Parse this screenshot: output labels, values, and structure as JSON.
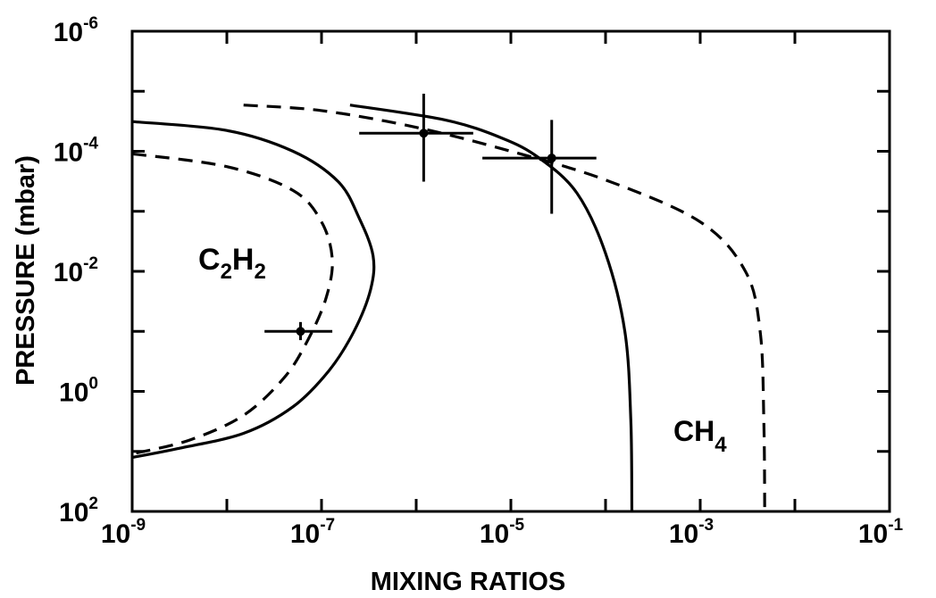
{
  "chart_data": {
    "type": "line",
    "xlabel": "MIXING RATIOS",
    "ylabel": "PRESSURE (mbar)",
    "xscale": "log",
    "yscale": "log",
    "y_inverted": true,
    "xlim": [
      1e-09,
      0.1
    ],
    "ylim": [
      100,
      1e-06
    ],
    "grid": false,
    "legend": "none",
    "x_ticks": [
      {
        "base": "10",
        "exp": "-9"
      },
      {
        "base": "10",
        "exp": "-7"
      },
      {
        "base": "10",
        "exp": "-5"
      },
      {
        "base": "10",
        "exp": "-3"
      },
      {
        "base": "10",
        "exp": "-1"
      }
    ],
    "y_ticks": [
      {
        "base": "10",
        "exp": "-6"
      },
      {
        "base": "10",
        "exp": "-4"
      },
      {
        "base": "10",
        "exp": "-2"
      },
      {
        "base": "10",
        "exp": "0"
      },
      {
        "base": "10",
        "exp": "2"
      }
    ],
    "annotations": {
      "c2h2": {
        "main1": "C",
        "sub1": "2",
        "main2": "H",
        "sub2": "2"
      },
      "ch4": {
        "main": "CH",
        "sub": "4"
      }
    },
    "series": [
      {
        "style": "solid",
        "color": "#000000",
        "points": [
          [
            1e-09,
            3.2e-05
          ],
          [
            1e-08,
            4.5e-05
          ],
          [
            5e-08,
            0.0001
          ],
          [
            1.5e-07,
            0.00032
          ],
          [
            2.5e-07,
            0.0013
          ],
          [
            3.5e-07,
            0.0055
          ],
          [
            3.3e-07,
            0.02
          ],
          [
            2.2e-07,
            0.1
          ],
          [
            1.2e-07,
            0.45
          ],
          [
            5e-08,
            1.8
          ],
          [
            1.5e-08,
            5.0
          ],
          [
            3e-09,
            9.0
          ],
          [
            1e-09,
            12.6
          ]
        ]
      },
      {
        "style": "dashed",
        "color": "#000000",
        "points": [
          [
            1e-09,
            0.00011
          ],
          [
            1e-08,
            0.00018
          ],
          [
            5e-08,
            0.00045
          ],
          [
            1e-07,
            0.0015
          ],
          [
            1.3e-07,
            0.0065
          ],
          [
            1.1e-07,
            0.03
          ],
          [
            7e-08,
            0.15
          ],
          [
            4e-08,
            0.6
          ],
          [
            1.5e-08,
            2.5
          ],
          [
            4e-09,
            6.5
          ],
          [
            1e-09,
            11
          ]
        ]
      },
      {
        "style": "solid",
        "color": "#000000",
        "points": [
          [
            2e-07,
            1.7e-05
          ],
          [
            2e-06,
            3e-05
          ],
          [
            8e-06,
            6e-05
          ],
          [
            2e-05,
            0.00013
          ],
          [
            5e-05,
            0.0005
          ],
          [
            0.0001,
            0.005
          ],
          [
            0.00016,
            0.1
          ],
          [
            0.000185,
            3.0
          ],
          [
            0.00019,
            100
          ]
        ]
      },
      {
        "style": "dashed",
        "color": "#000000",
        "points": [
          [
            1.5e-08,
            1.7e-05
          ],
          [
            1e-07,
            2.1e-05
          ],
          [
            1e-06,
            4e-05
          ],
          [
            1e-05,
            0.0001
          ],
          [
            0.0001,
            0.0003
          ],
          [
            0.001,
            0.0015
          ],
          [
            0.003,
            0.01
          ],
          [
            0.0043,
            0.1
          ],
          [
            0.0047,
            3.0
          ],
          [
            0.0048,
            100
          ]
        ]
      }
    ],
    "error_points": [
      {
        "x": 1.2e-06,
        "y": 5e-05,
        "xerr": [
          2.5e-07,
          4e-06
        ],
        "yerr": [
          1.1e-05,
          0.00032
        ]
      },
      {
        "x": 2.7e-05,
        "y": 0.00013,
        "xerr": [
          5e-06,
          8e-05
        ],
        "yerr": [
          3e-05,
          0.0011
        ]
      },
      {
        "x": 6e-08,
        "y": 0.1,
        "xerr": [
          2.5e-08,
          1.3e-07
        ],
        "yerr": [
          0.07,
          0.14
        ]
      }
    ]
  }
}
